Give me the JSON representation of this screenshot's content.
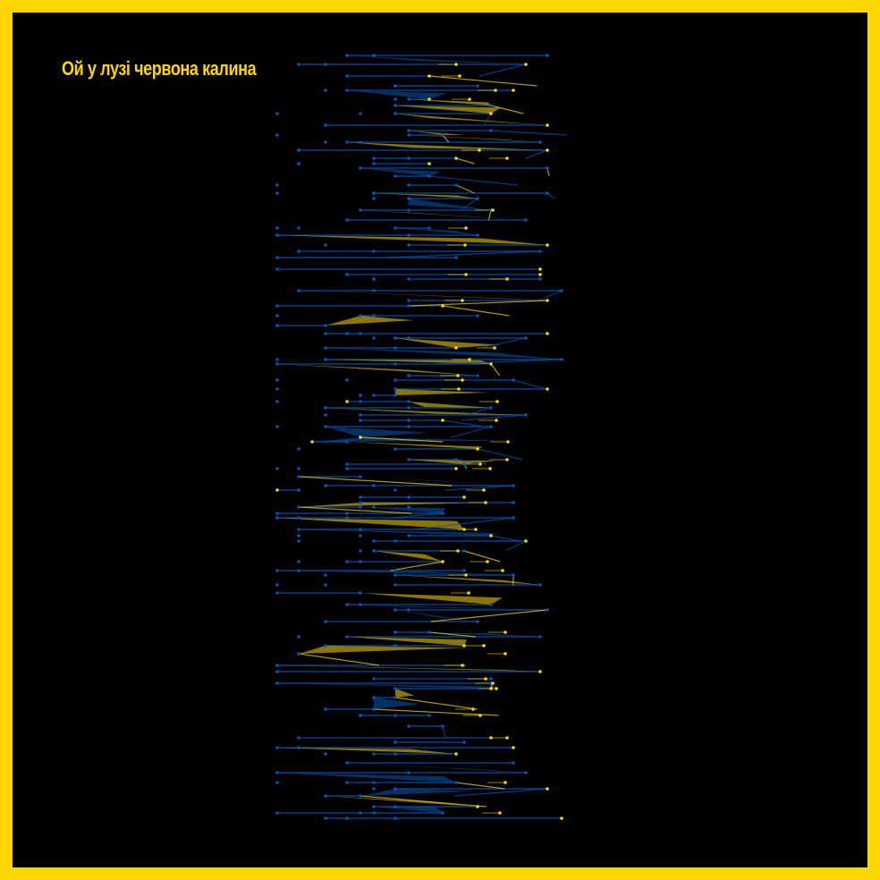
{
  "title": "Ой у лузі червона калина",
  "colors": {
    "frame": "#ffd500",
    "background": "#000000",
    "blue": "#0057b7",
    "yellow": "#ffd500"
  }
}
